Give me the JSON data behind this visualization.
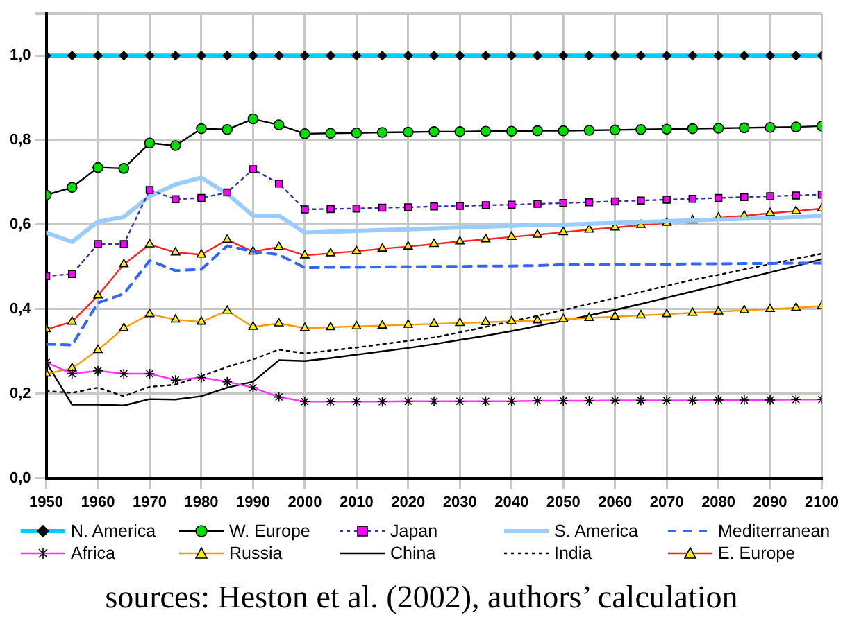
{
  "chart_data": {
    "type": "line",
    "x": [
      1950,
      1955,
      1960,
      1965,
      1970,
      1975,
      1980,
      1985,
      1990,
      1995,
      2000,
      2005,
      2010,
      2015,
      2020,
      2025,
      2030,
      2035,
      2040,
      2045,
      2050,
      2055,
      2060,
      2065,
      2070,
      2075,
      2080,
      2085,
      2090,
      2095,
      2100
    ],
    "xlim": [
      1950,
      2100
    ],
    "xticks": [
      1950,
      1960,
      1970,
      1980,
      1990,
      2000,
      2010,
      2020,
      2030,
      2040,
      2050,
      2060,
      2070,
      2080,
      2090,
      2100
    ],
    "ylim": [
      0,
      1.1
    ],
    "yticks": [
      {
        "value": 0,
        "label": "0,0"
      },
      {
        "value": 0.2,
        "label": "0,2"
      },
      {
        "value": 0.4,
        "label": "0,4"
      },
      {
        "value": 0.6,
        "label": "0,6"
      },
      {
        "value": 0.8,
        "label": "0,8"
      },
      {
        "value": 1,
        "label": "1,0"
      },
      {
        "value": 1.1,
        "label": null
      }
    ],
    "grid": true,
    "legend": "bottom",
    "annotations": [
      "sources: Heston et al. (2002), authors’ calculation"
    ],
    "series": [
      {
        "name": "N. America",
        "color": "#00ccff",
        "marker": "diamond",
        "line_style": "solid",
        "values": [
          1,
          1,
          1,
          1,
          1,
          1,
          1,
          1,
          1,
          1,
          1,
          1,
          1,
          1,
          1,
          1,
          1,
          1,
          1,
          1,
          1,
          1,
          1,
          1,
          1,
          1,
          1,
          1,
          1,
          1,
          1
        ]
      },
      {
        "name": "W. Europe",
        "color": "#000000",
        "marker": "circle",
        "line_style": "solid",
        "values": [
          0.67,
          0.688,
          0.735,
          0.733,
          0.793,
          0.787,
          0.827,
          0.825,
          0.85,
          0.836,
          0.815,
          0.816,
          0.817,
          0.818,
          0.819,
          0.82,
          0.82,
          0.821,
          0.821,
          0.822,
          0.822,
          0.823,
          0.824,
          0.825,
          0.826,
          0.827,
          0.828,
          0.829,
          0.83,
          0.831,
          0.833
        ]
      },
      {
        "name": "Japan",
        "color": "#3333aa",
        "marker": "square",
        "line_style": "dotted",
        "values": [
          0.478,
          0.483,
          0.554,
          0.554,
          0.682,
          0.66,
          0.663,
          0.676,
          0.731,
          0.697,
          0.636,
          0.637,
          0.638,
          0.64,
          0.641,
          0.643,
          0.644,
          0.646,
          0.647,
          0.649,
          0.651,
          0.653,
          0.655,
          0.657,
          0.659,
          0.661,
          0.663,
          0.665,
          0.667,
          0.669,
          0.671
        ]
      },
      {
        "name": "S. America",
        "color": "#99ccff",
        "marker": "none",
        "line_style": "solid",
        "values": [
          0.581,
          0.559,
          0.607,
          0.618,
          0.667,
          0.695,
          0.711,
          0.673,
          0.621,
          0.621,
          0.581,
          0.583,
          0.585,
          0.587,
          0.589,
          0.591,
          0.593,
          0.595,
          0.597,
          0.599,
          0.6,
          0.602,
          0.604,
          0.606,
          0.608,
          0.61,
          0.612,
          0.614,
          0.616,
          0.618,
          0.62
        ]
      },
      {
        "name": "Mediterranean",
        "color": "#3366ff",
        "marker": "none",
        "line_style": "dashed",
        "values": [
          0.317,
          0.315,
          0.415,
          0.436,
          0.515,
          0.491,
          0.494,
          0.55,
          0.536,
          0.529,
          0.498,
          0.499,
          0.499,
          0.5,
          0.5,
          0.501,
          0.501,
          0.502,
          0.502,
          0.503,
          0.505,
          0.505,
          0.505,
          0.506,
          0.506,
          0.507,
          0.507,
          0.508,
          0.508,
          0.509,
          0.509
        ]
      },
      {
        "name": "Africa",
        "color": "#ff33ff",
        "marker": "cross",
        "line_style": "solid",
        "values": [
          0.274,
          0.247,
          0.254,
          0.247,
          0.247,
          0.232,
          0.238,
          0.228,
          0.214,
          0.192,
          0.181,
          0.181,
          0.181,
          0.181,
          0.182,
          0.182,
          0.182,
          0.182,
          0.182,
          0.183,
          0.183,
          0.183,
          0.184,
          0.184,
          0.184,
          0.184,
          0.185,
          0.185,
          0.185,
          0.186,
          0.186
        ]
      },
      {
        "name": "Russia",
        "color": "#ff9900",
        "marker": "triangle",
        "line_style": "solid",
        "values": [
          0.247,
          0.26,
          0.303,
          0.355,
          0.388,
          0.375,
          0.37,
          0.396,
          0.358,
          0.366,
          0.355,
          0.357,
          0.359,
          0.361,
          0.363,
          0.365,
          0.367,
          0.369,
          0.371,
          0.373,
          0.376,
          0.379,
          0.382,
          0.385,
          0.388,
          0.391,
          0.394,
          0.397,
          0.4,
          0.403,
          0.407
        ]
      },
      {
        "name": "China",
        "color": "#000000",
        "marker": "none",
        "line_style": "solid",
        "values": [
          0.274,
          0.174,
          0.174,
          0.172,
          0.187,
          0.186,
          0.194,
          0.214,
          0.228,
          0.279,
          0.277,
          0.284,
          0.292,
          0.3,
          0.308,
          0.317,
          0.327,
          0.337,
          0.348,
          0.36,
          0.372,
          0.385,
          0.398,
          0.412,
          0.427,
          0.442,
          0.457,
          0.472,
          0.487,
          0.502,
          0.518
        ]
      },
      {
        "name": "India",
        "color": "#000000",
        "marker": "none",
        "line_style": "dotted",
        "values": [
          0.206,
          0.202,
          0.214,
          0.194,
          0.216,
          0.221,
          0.241,
          0.263,
          0.281,
          0.304,
          0.295,
          0.302,
          0.309,
          0.317,
          0.325,
          0.333,
          0.345,
          0.358,
          0.371,
          0.384,
          0.398,
          0.412,
          0.426,
          0.441,
          0.455,
          0.469,
          0.481,
          0.494,
          0.506,
          0.519,
          0.531
        ]
      },
      {
        "name": "E. Europe",
        "color": "#ff2222",
        "marker": "triangle",
        "line_style": "solid",
        "values": [
          0.352,
          0.37,
          0.432,
          0.506,
          0.553,
          0.534,
          0.529,
          0.564,
          0.536,
          0.547,
          0.527,
          0.532,
          0.537,
          0.543,
          0.548,
          0.554,
          0.56,
          0.565,
          0.571,
          0.576,
          0.582,
          0.588,
          0.593,
          0.599,
          0.604,
          0.61,
          0.616,
          0.621,
          0.627,
          0.632,
          0.638
        ]
      }
    ]
  }
}
